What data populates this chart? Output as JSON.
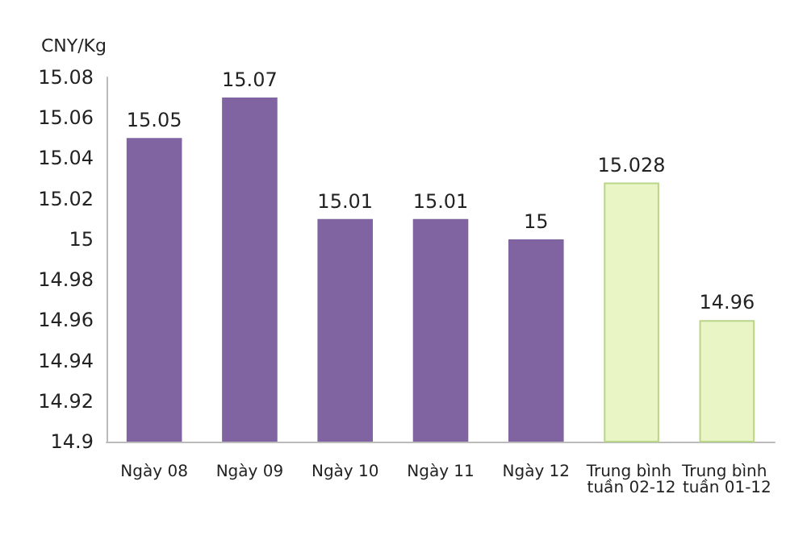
{
  "chart_data": {
    "type": "bar",
    "ylabel": "CNY/Kg",
    "categories": [
      "Ngày 08",
      "Ngày 09",
      "Ngày 10",
      "Ngày 11",
      "Ngày 12",
      "Trung bình tuần 02-12",
      "Trung bình tuần 01-12"
    ],
    "values": [
      15.05,
      15.07,
      15.01,
      15.01,
      15,
      15.028,
      14.96
    ],
    "colors": [
      "#8064a2",
      "#8064a2",
      "#8064a2",
      "#8064a2",
      "#8064a2",
      "#eaf5c6",
      "#eaf5c6"
    ],
    "ylim": [
      14.9,
      15.08
    ],
    "yticks": [
      14.9,
      14.92,
      14.94,
      14.96,
      14.98,
      15,
      15.02,
      15.04,
      15.06,
      15.08
    ],
    "grid": false,
    "data_labels": true
  }
}
